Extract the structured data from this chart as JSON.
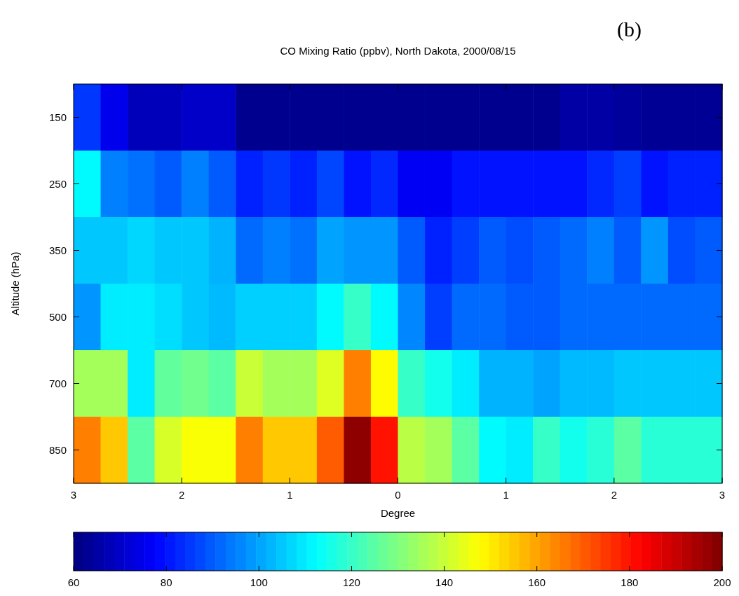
{
  "chart_data": {
    "type": "heatmap",
    "title": "CO Mixing Ratio (ppbv), North Dakota, 2000/08/15",
    "xlabel": "Degree",
    "ylabel": "Altitude (hPa)",
    "annotations": [
      "(b)"
    ],
    "x": [
      -2.875,
      -2.625,
      -2.375,
      -2.125,
      -1.875,
      -1.625,
      -1.375,
      -1.125,
      -0.875,
      -0.625,
      -0.375,
      -0.125,
      0.125,
      0.375,
      0.625,
      0.875,
      1.125,
      1.375,
      1.625,
      1.875,
      2.125,
      2.375,
      2.625,
      2.875
    ],
    "xlim": [
      -3,
      3
    ],
    "xticks": [
      {
        "value": -3,
        "label": "3"
      },
      {
        "value": -2,
        "label": "2"
      },
      {
        "value": -1,
        "label": "1"
      },
      0,
      1,
      2,
      3
    ],
    "y_categories": [
      "150",
      "250",
      "350",
      "500",
      "700",
      "850"
    ],
    "cells": [
      [
        85,
        75,
        68,
        68,
        70,
        70,
        62,
        62,
        62,
        62,
        62,
        62,
        62,
        62,
        62,
        62,
        62,
        62,
        65,
        65,
        64,
        63,
        63,
        63
      ],
      [
        112,
        95,
        93,
        90,
        95,
        90,
        82,
        85,
        82,
        87,
        80,
        83,
        76,
        76,
        80,
        80,
        80,
        80,
        80,
        83,
        86,
        80,
        82,
        82
      ],
      [
        105,
        105,
        107,
        105,
        105,
        102,
        92,
        95,
        93,
        100,
        98,
        98,
        90,
        82,
        86,
        90,
        88,
        90,
        92,
        95,
        90,
        98,
        88,
        90
      ],
      [
        98,
        110,
        110,
        108,
        105,
        103,
        106,
        106,
        106,
        112,
        120,
        112,
        96,
        86,
        92,
        92,
        90,
        90,
        92,
        92,
        92,
        92,
        92,
        92
      ],
      [
        135,
        135,
        110,
        126,
        128,
        125,
        140,
        135,
        135,
        143,
        165,
        148,
        120,
        115,
        110,
        102,
        102,
        100,
        103,
        103,
        105,
        105,
        105,
        105
      ],
      [
        165,
        155,
        125,
        142,
        147,
        147,
        165,
        155,
        155,
        170,
        198,
        180,
        138,
        135,
        125,
        112,
        110,
        120,
        115,
        118,
        125,
        118,
        118,
        118
      ]
    ],
    "clim": [
      60,
      200
    ],
    "cticks": [
      60,
      80,
      100,
      120,
      140,
      160,
      180,
      200
    ]
  }
}
